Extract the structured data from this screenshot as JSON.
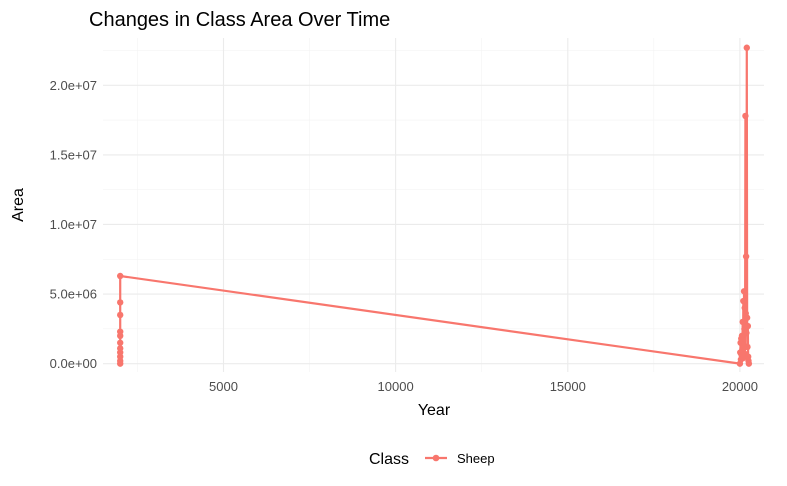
{
  "chart_data": {
    "type": "line",
    "title": "Changes in Class Area Over Time",
    "xlabel": "Year",
    "ylabel": "Area",
    "xlim": [
      1500,
      20700
    ],
    "ylim": [
      -600000,
      23400000
    ],
    "x_ticks": [
      5000,
      10000,
      15000,
      20000
    ],
    "x_tick_labels": [
      "5000",
      "10000",
      "15000",
      "20000"
    ],
    "y_ticks": [
      0,
      5000000,
      10000000,
      15000000,
      20000000
    ],
    "y_tick_labels": [
      "0.0e+00",
      "5.0e+06",
      "1.0e+07",
      "1.5e+07",
      "2.0e+07"
    ],
    "grid": true,
    "legend": {
      "title": "Class",
      "position": "bottom"
    },
    "series": [
      {
        "name": "Sheep",
        "color": "#F8766D",
        "points": [
          [
            2000,
            0
          ],
          [
            2000,
            200000
          ],
          [
            2000,
            500000
          ],
          [
            2000,
            800000
          ],
          [
            2000,
            1100000
          ],
          [
            2000,
            1500000
          ],
          [
            2000,
            2000000
          ],
          [
            2000,
            2300000
          ],
          [
            2000,
            3500000
          ],
          [
            2000,
            4400000
          ],
          [
            2000,
            6300000
          ],
          [
            20000,
            0
          ],
          [
            20010,
            800000
          ],
          [
            20020,
            1500000
          ],
          [
            20030,
            300000
          ],
          [
            20040,
            1800000
          ],
          [
            20050,
            600000
          ],
          [
            20060,
            2000000
          ],
          [
            20070,
            1000000
          ],
          [
            20080,
            3000000
          ],
          [
            20090,
            400000
          ],
          [
            20100,
            4500000
          ],
          [
            20110,
            1300000
          ],
          [
            20120,
            5200000
          ],
          [
            20130,
            2500000
          ],
          [
            20140,
            4000000
          ],
          [
            20150,
            700000
          ],
          [
            20160,
            17800000
          ],
          [
            20170,
            3600000
          ],
          [
            20180,
            7700000
          ],
          [
            20190,
            2200000
          ],
          [
            20200,
            22700000
          ],
          [
            20210,
            3300000
          ],
          [
            20220,
            1200000
          ],
          [
            20230,
            2700000
          ],
          [
            20240,
            500000
          ],
          [
            20250,
            200000
          ],
          [
            20260,
            0
          ]
        ]
      }
    ]
  }
}
